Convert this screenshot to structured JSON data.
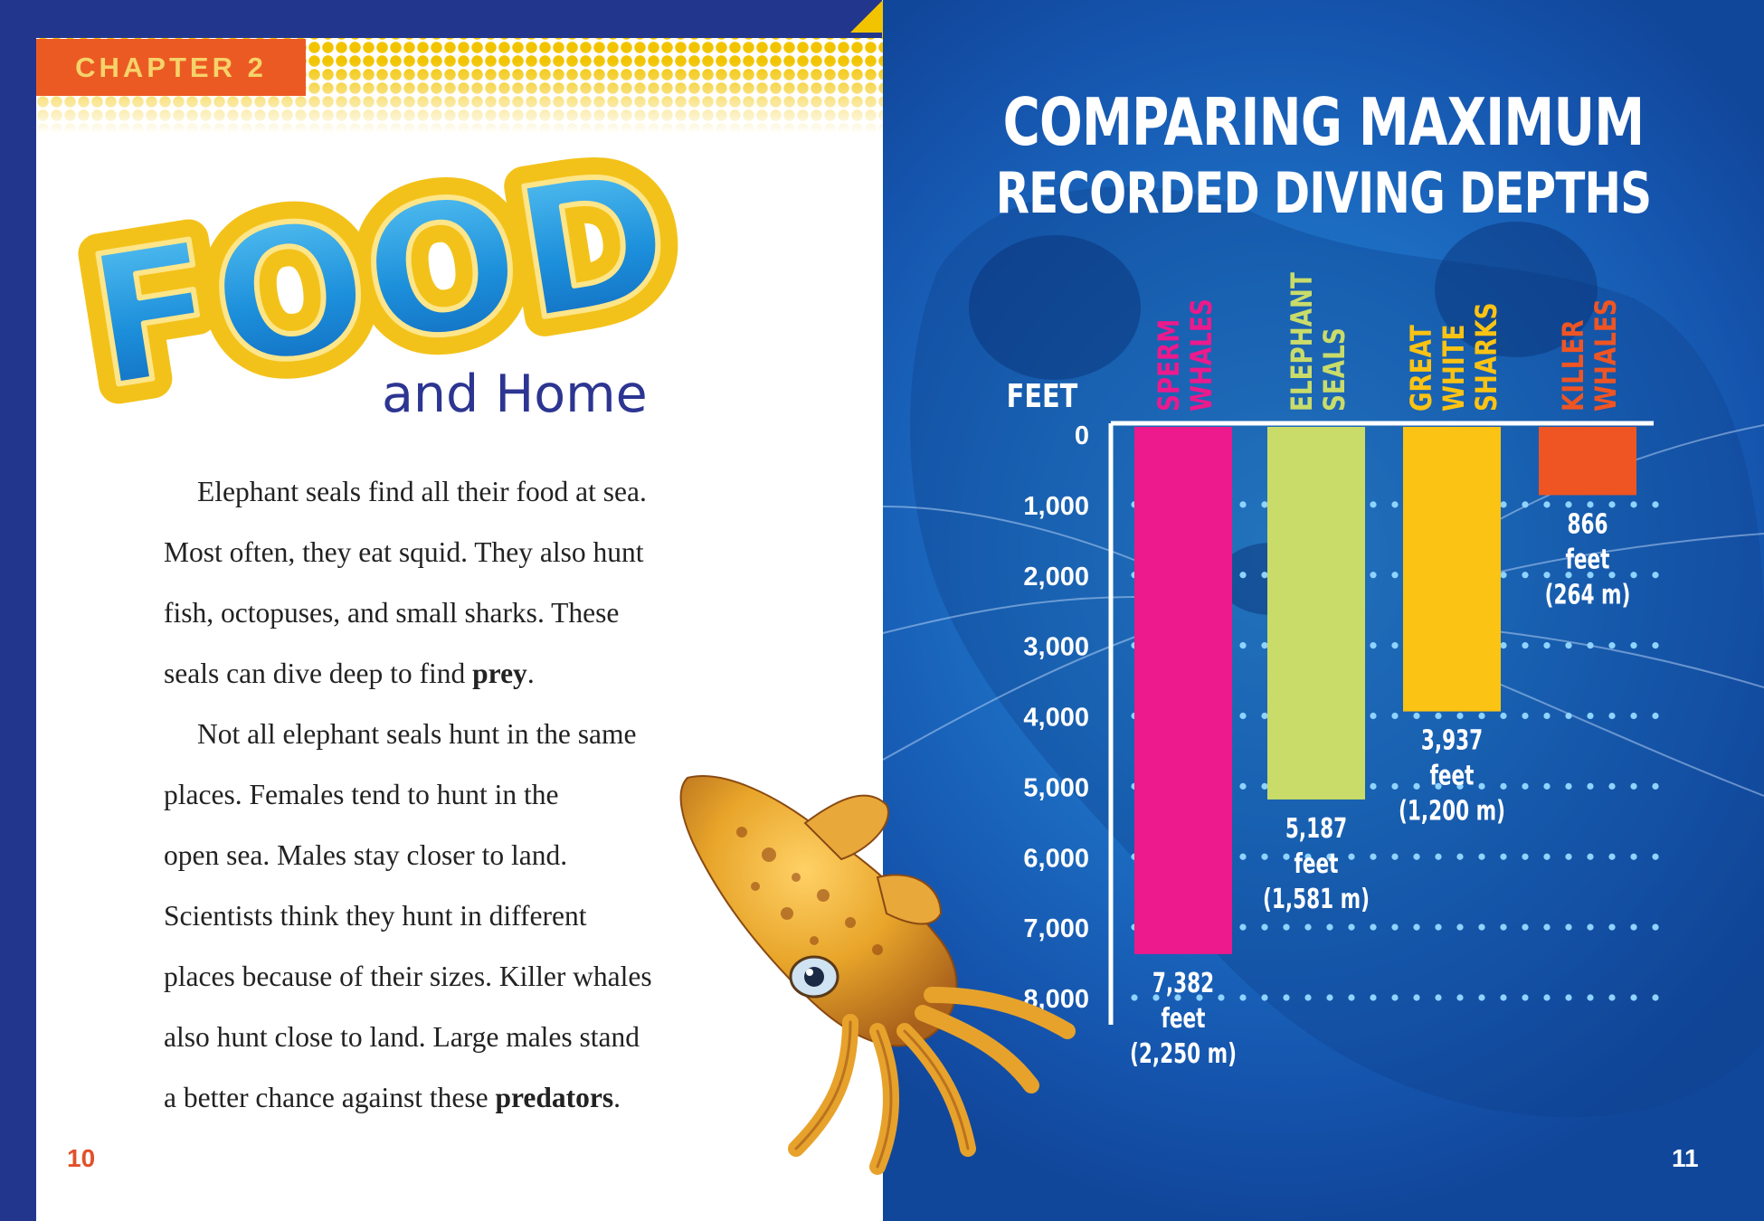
{
  "left_page": {
    "chapter_label": "CHAPTER 2",
    "headline": "FOOD",
    "subtitle": "and Home",
    "paragraph1_lines": [
      "Elephant seals find all their food at sea.",
      "Most often, they eat squid. They also hunt",
      "fish, octopuses, and small sharks. These"
    ],
    "paragraph1_last_prefix": "seals can dive deep to find ",
    "paragraph1_bold_word": "prey",
    "paragraph1_last_suffix": ".",
    "paragraph2_lines": [
      "Not all elephant seals hunt in the same",
      "places. Females tend to hunt in the",
      "open sea. Males stay closer to land.",
      "Scientists think they hunt in different",
      "places because of their sizes. Killer whales",
      "also hunt close to land. Large males stand"
    ],
    "paragraph2_last_prefix": "a better chance against these ",
    "paragraph2_bold_word": "predators",
    "paragraph2_last_suffix": ".",
    "page_number": "10"
  },
  "right_page": {
    "page_number": "11"
  },
  "colors": {
    "navy": "#22368e",
    "orange": "#ec5a24",
    "yellow": "#f2c400",
    "sperm_whales": "#ec1a8c",
    "elephant_seals": "#c9dc6a",
    "great_white_sharks": "#fbc313",
    "killer_whales": "#ef5523"
  },
  "chart_data": {
    "type": "bar",
    "orientation": "vertical-downward",
    "title_line1": "COMPARING MAXIMUM",
    "title_line2": "RECORDED DIVING DEPTHS",
    "ylabel": "FEET",
    "ylim": [
      0,
      8000
    ],
    "yticks": [
      "0",
      "1,000",
      "2,000",
      "3,000",
      "4,000",
      "5,000",
      "6,000",
      "7,000",
      "8,000"
    ],
    "ytick_values": [
      0,
      1000,
      2000,
      3000,
      4000,
      5000,
      6000,
      7000,
      8000
    ],
    "grid": "dotted",
    "categories": [
      [
        "SPERM",
        "WHALES"
      ],
      [
        "ELEPHANT",
        "SEALS"
      ],
      [
        "GREAT",
        "WHITE",
        "SHARKS"
      ],
      [
        "KILLER",
        "WHALES"
      ]
    ],
    "values": [
      7382,
      5187,
      3937,
      866
    ],
    "value_labels": [
      [
        "7,382",
        "feet",
        "(2,250 m)"
      ],
      [
        "5,187",
        "feet",
        "(1,581 m)"
      ],
      [
        "3,937",
        "feet",
        "(1,200 m)"
      ],
      [
        "866",
        "feet",
        "(264 m)"
      ]
    ],
    "bar_colors": [
      "#ec1a8c",
      "#c9dc6a",
      "#fbc313",
      "#ef5523"
    ],
    "category_label_colors": [
      "#ec1a8c",
      "#c9dc6a",
      "#fbc313",
      "#ef5523"
    ]
  }
}
